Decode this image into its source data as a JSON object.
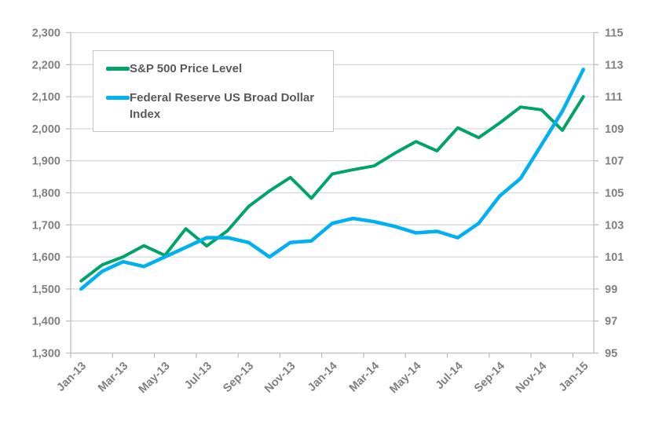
{
  "page": {
    "background": "#ffffff"
  },
  "chart_data": {
    "type": "line",
    "title": "",
    "grid": true,
    "legend_position": "top-left-inside",
    "x_tick_labels": [
      "Jan-13",
      "Mar-13",
      "May-13",
      "Jul-13",
      "Sep-13",
      "Nov-13",
      "Jan-14",
      "Mar-14",
      "May-14",
      "Jul-14",
      "Sep-14",
      "Nov-14",
      "Jan-15"
    ],
    "left_axis": {
      "min": 1300,
      "max": 2300,
      "step": 100,
      "labels": [
        "1,300",
        "1,400",
        "1,500",
        "1,600",
        "1,700",
        "1,800",
        "1,900",
        "2,000",
        "2,100",
        "2,200",
        "2,300"
      ]
    },
    "right_axis": {
      "min": 95,
      "max": 115,
      "step": 2,
      "labels": [
        "95",
        "97",
        "99",
        "101",
        "103",
        "105",
        "107",
        "109",
        "111",
        "113",
        "115"
      ]
    },
    "series": [
      {
        "name": "S&P 500 Price Level",
        "axis": "left",
        "color": "#00a468",
        "values": [
          1525,
          1575,
          1600,
          1635,
          1605,
          1688,
          1634,
          1682,
          1757,
          1806,
          1848,
          1783,
          1859,
          1872,
          1884,
          1924,
          1960,
          1931,
          2003,
          1972,
          2018,
          2068,
          2059,
          1995,
          2100
        ]
      },
      {
        "name": "Federal Reserve US Broad Dollar Index",
        "axis": "right",
        "color": "#00b0f0",
        "values": [
          99.0,
          100.1,
          100.7,
          100.4,
          101.0,
          101.6,
          102.2,
          102.2,
          101.9,
          101.0,
          101.9,
          102.0,
          103.1,
          103.4,
          103.2,
          102.9,
          102.5,
          102.6,
          102.2,
          103.1,
          104.8,
          105.9,
          108.0,
          110.1,
          112.7
        ]
      }
    ],
    "colors": {
      "gridline": "#d9d9d9",
      "axis_line": "#bfbfbf",
      "tick_label": "#808080",
      "legend_text": "#595959",
      "legend_border": "#c6c6c6"
    }
  }
}
